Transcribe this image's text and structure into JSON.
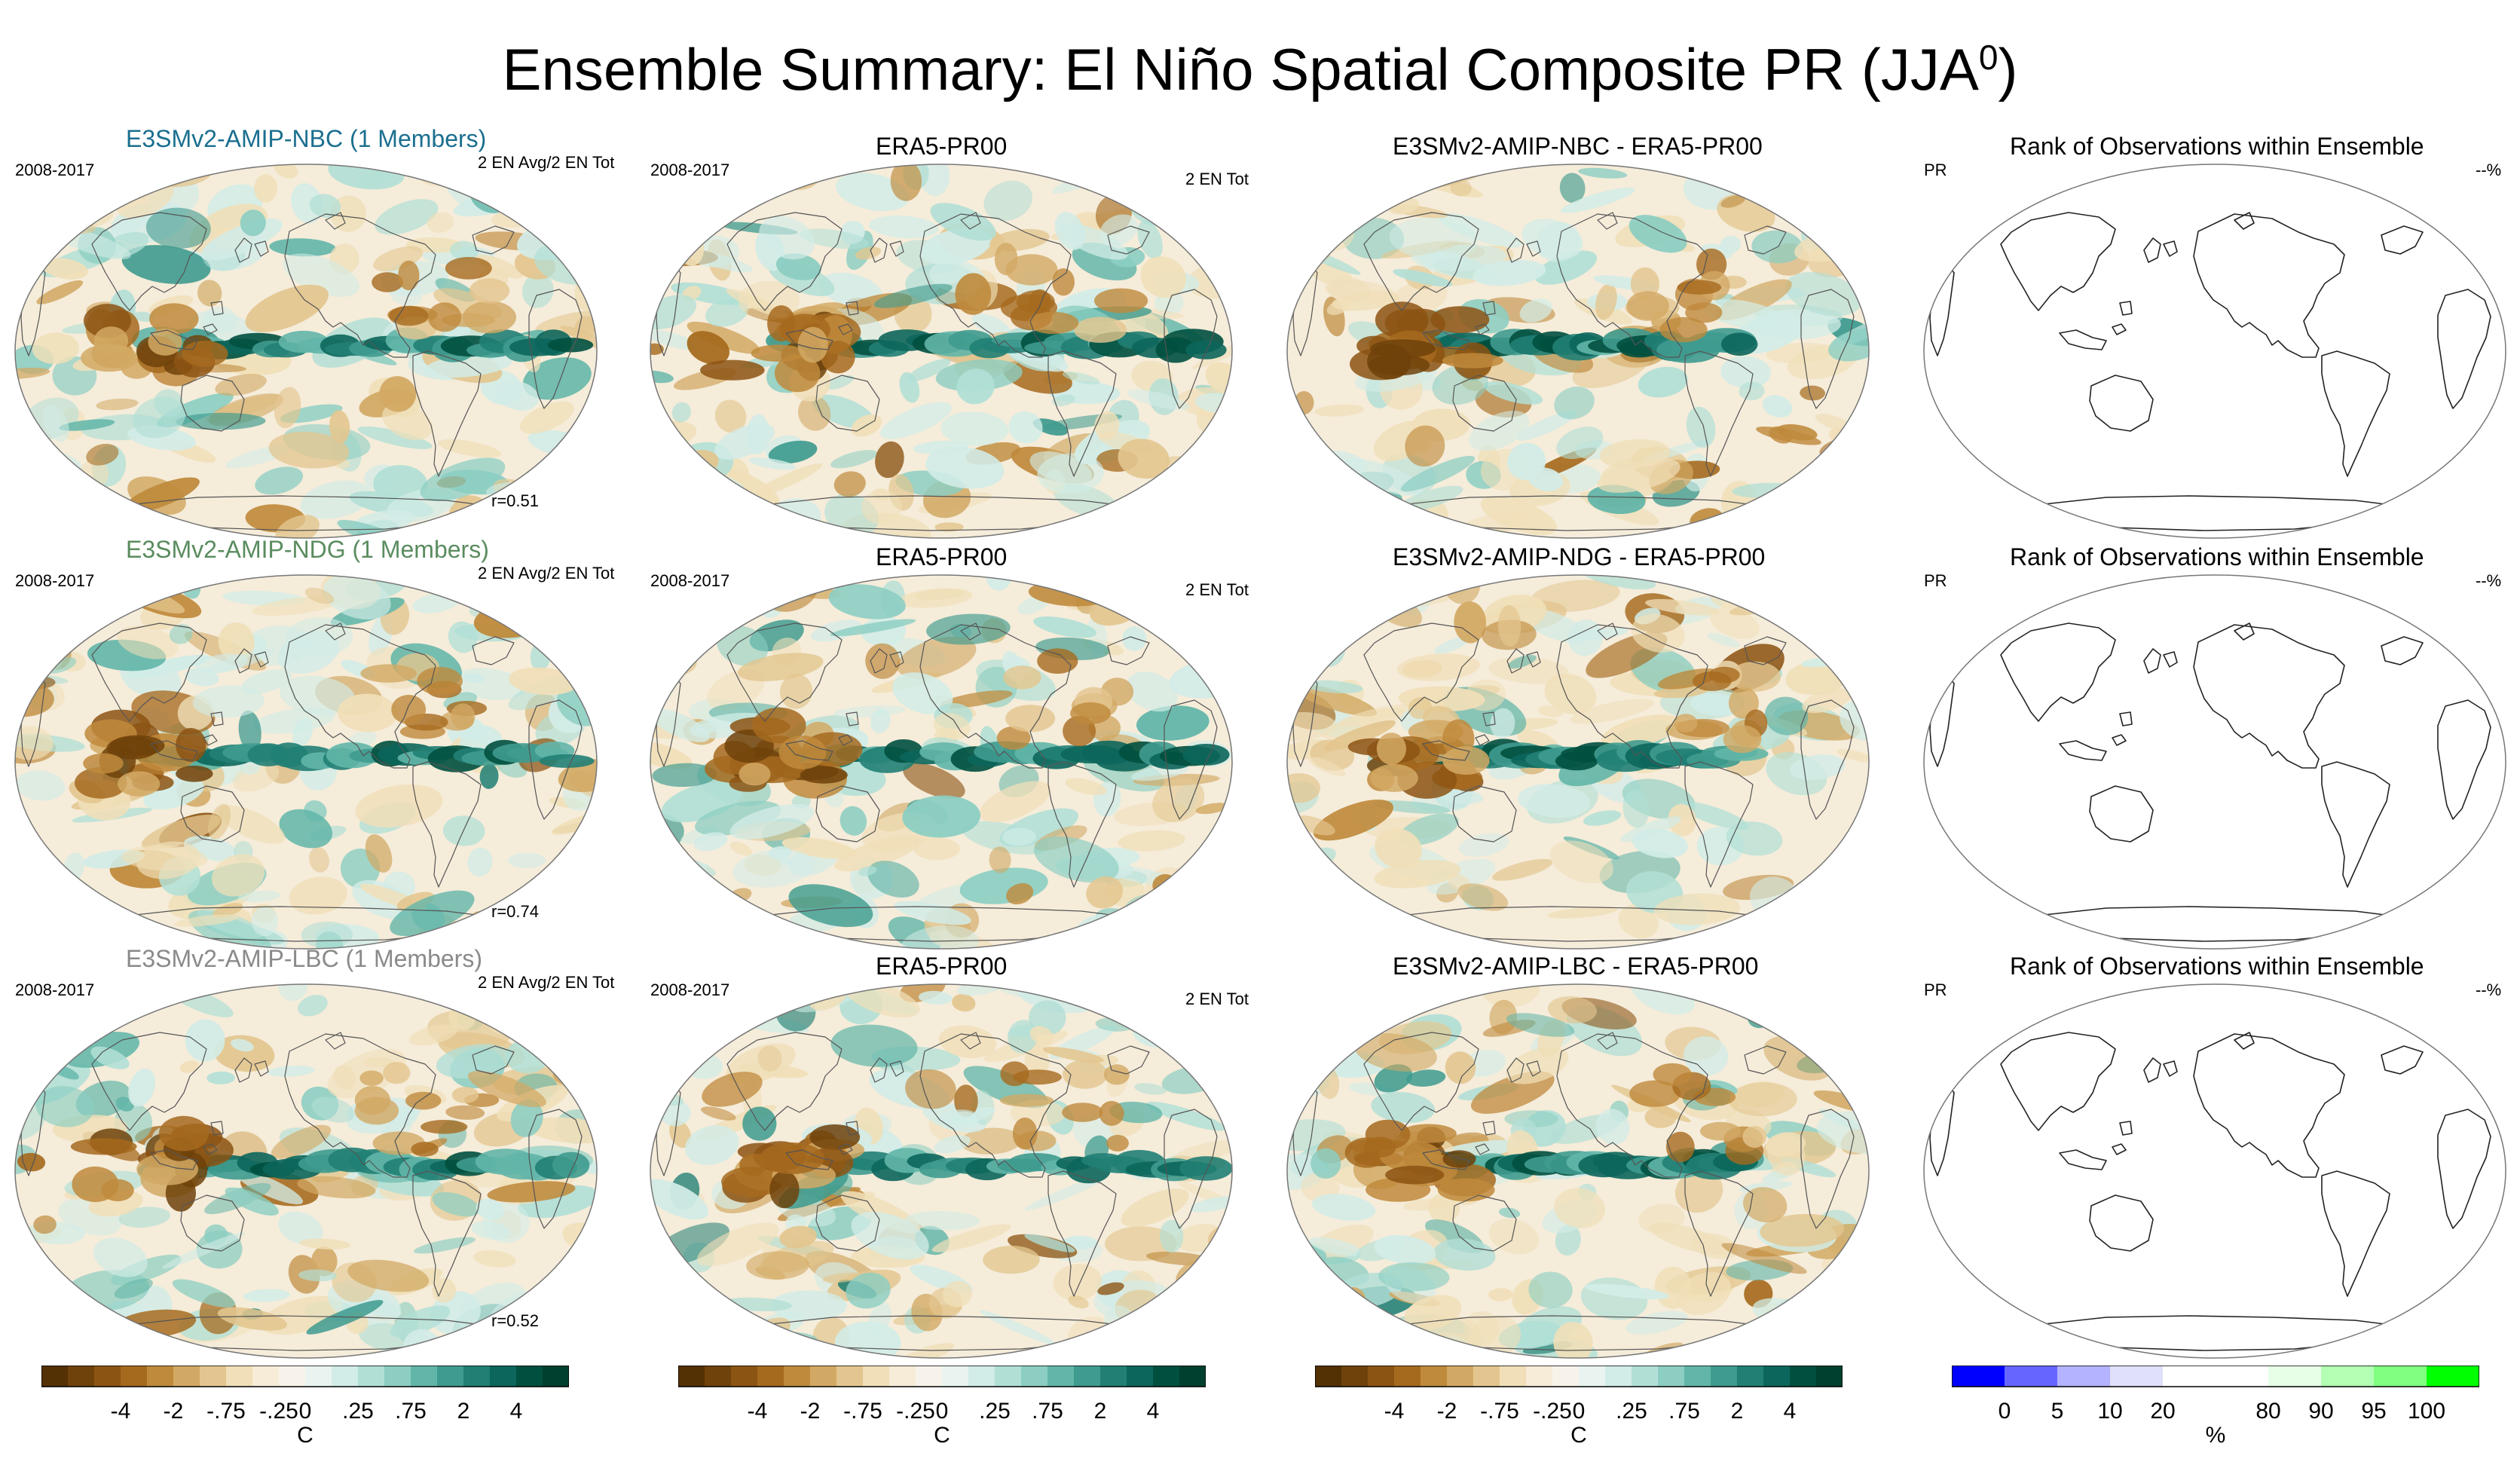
{
  "page": {
    "title_main": "Ensemble Summary: El Niño Spatial Composite PR (JJA",
    "title_sup": "0",
    "title_end": ")"
  },
  "rows": [
    {
      "model_title": "E3SMv2-AMIP-NBC (1 Members)",
      "model_color": "#1b6f8f",
      "model_period": "2008-2017",
      "model_note": "2 EN Avg/2 EN Tot",
      "model_r": "r=0.51",
      "obs_title": "ERA5-PR00",
      "obs_period": "2008-2017",
      "obs_note": "2 EN Tot",
      "diff_title": "E3SMv2-AMIP-NBC - ERA5-PR00",
      "rank_title": "Rank of Observations within Ensemble",
      "rank_left": "PR",
      "rank_right": "--%"
    },
    {
      "model_title": "E3SMv2-AMIP-NDG (1 Members)",
      "model_color": "#5a8c5f",
      "model_period": "2008-2017",
      "model_note": "2 EN Avg/2 EN Tot",
      "model_r": "r=0.74",
      "obs_title": "ERA5-PR00",
      "obs_period": "2008-2017",
      "obs_note": "2 EN Tot",
      "diff_title": "E3SMv2-AMIP-NDG - ERA5-PR00",
      "rank_title": "Rank of Observations within Ensemble",
      "rank_left": "PR",
      "rank_right": "--%"
    },
    {
      "model_title": "E3SMv2-AMIP-LBC (1 Members)",
      "model_color": "#8a8a8a",
      "model_period": "2008-2017",
      "model_note": "2 EN Avg/2 EN Tot",
      "model_r": "r=0.52",
      "obs_title": "ERA5-PR00",
      "obs_period": "2008-2017",
      "obs_note": "2 EN Tot",
      "diff_title": "E3SMv2-AMIP-LBC - ERA5-PR00",
      "rank_title": "Rank of Observations within Ensemble",
      "rank_left": "PR",
      "rank_right": "--%"
    }
  ],
  "colorbars": {
    "anomaly": {
      "unit": "C",
      "colors": [
        "#543005",
        "#6f420b",
        "#8c5413",
        "#a66a1e",
        "#bf8a3c",
        "#d2a964",
        "#e3c68f",
        "#f0dfb8",
        "#f6ecd8",
        "#f7f3ea",
        "#e9f4f1",
        "#d2ece7",
        "#b1dfd6",
        "#8ccec2",
        "#62b6a9",
        "#3f9b8f",
        "#217f74",
        "#0c665b",
        "#01503f",
        "#00402f"
      ],
      "tick_labels": [
        "-4",
        "-2",
        "-.75",
        "-.25",
        "0",
        ".25",
        ".75",
        "2",
        "4"
      ]
    },
    "rank": {
      "unit": "%",
      "colors": [
        "#0000ff",
        "#6666ff",
        "#b3b3ff",
        "#e0e0fa",
        "#ffffff",
        "#ffffff",
        "#e6ffe6",
        "#b3ffb3",
        "#80ff80",
        "#00ff00"
      ],
      "tick_labels": [
        "0",
        "5",
        "10",
        "20",
        "80",
        "90",
        "95",
        "100"
      ]
    }
  },
  "chart_data": {
    "type": "heatmap",
    "title": "Ensemble Summary: El Niño Spatial Composite PR (JJA0)",
    "projection": "global, Pacific-centred elliptical",
    "panels_per_row": [
      "model composite",
      "ERA5-PR00 observation",
      "model minus observation",
      "rank of observations within ensemble"
    ],
    "pattern_correlation": [
      {
        "model": "E3SMv2-AMIP-NBC",
        "r": 0.51
      },
      {
        "model": "E3SMv2-AMIP-NDG",
        "r": 0.74
      },
      {
        "model": "E3SMv2-AMIP-LBC",
        "r": 0.52
      }
    ],
    "anomaly_levels": [
      -4,
      -2,
      -0.75,
      -0.25,
      0,
      0.25,
      0.75,
      2,
      4
    ],
    "anomaly_units": "C",
    "rank_levels": [
      0,
      5,
      10,
      20,
      80,
      90,
      95,
      100
    ],
    "rank_units": "%",
    "period": "2008-2017"
  }
}
